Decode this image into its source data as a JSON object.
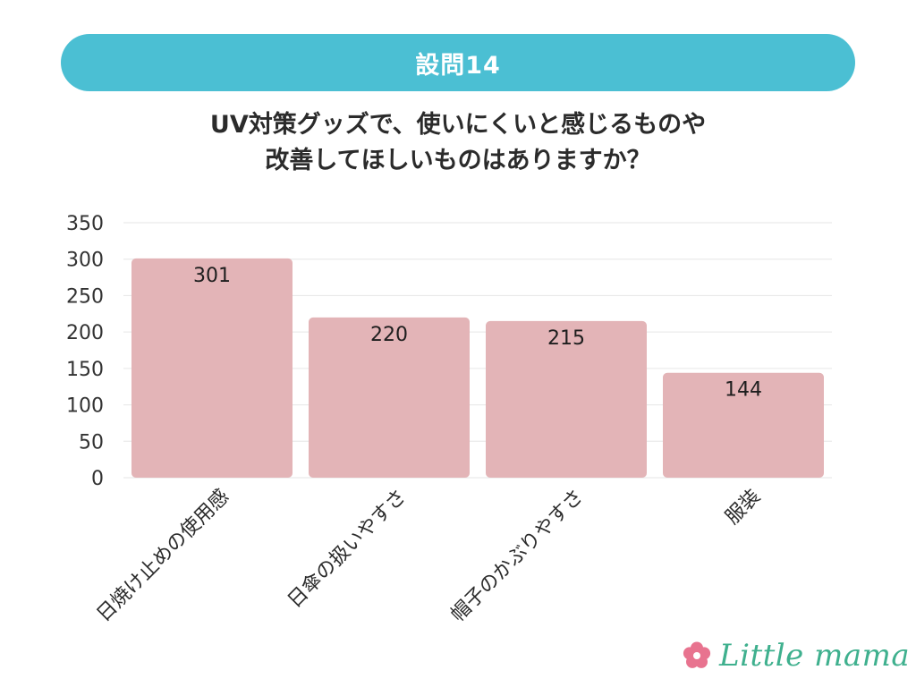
{
  "header": {
    "banner_label": "設問14",
    "question_lines": [
      "UV対策グッズで、使いにくいと感じるものや",
      "改善してほしいものはありますか？"
    ]
  },
  "colors": {
    "banner": "#4bbfd3",
    "bar": "#e3b4b7",
    "grid": "#e6e6e6",
    "logo": "#3fb08e",
    "flower": "#e8738f"
  },
  "logo": {
    "text": "Little mama",
    "icon": "flower-icon"
  },
  "chart_data": {
    "type": "bar",
    "categories": [
      "日焼け止めの使用感",
      "日傘の扱いやすさ",
      "帽子のかぶりやすさ",
      "服装"
    ],
    "values": [
      301,
      220,
      215,
      144
    ],
    "data_labels": [
      "301",
      "220",
      "215",
      "144"
    ],
    "ylim": [
      0,
      350
    ],
    "yticks": [
      0,
      50,
      100,
      150,
      200,
      250,
      300,
      350
    ],
    "grid": true,
    "legend": "none"
  }
}
